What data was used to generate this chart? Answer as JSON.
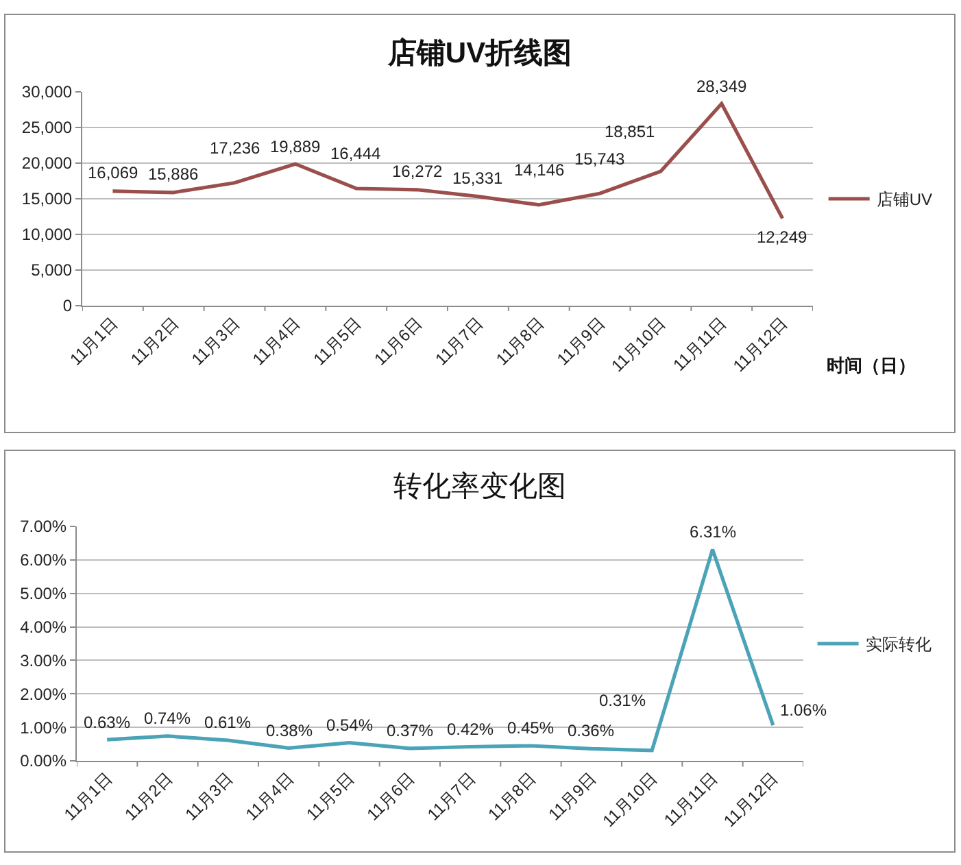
{
  "chart_data": [
    {
      "type": "line",
      "title": "店铺UV折线图",
      "xlabel": "时间（日）",
      "categories": [
        "11月1日",
        "11月2日",
        "11月3日",
        "11月4日",
        "11月5日",
        "11月6日",
        "11月7日",
        "11月8日",
        "11月9日",
        "11月10日",
        "11月11日",
        "11月12日"
      ],
      "series": [
        {
          "name": "店铺UV",
          "color": "#9b4f4c",
          "values": [
            16069,
            15886,
            17236,
            19889,
            16444,
            16272,
            15331,
            14146,
            15743,
            18851,
            28349,
            12249
          ],
          "value_labels": [
            "16,069",
            "15,886",
            "17,236",
            "19,889",
            "16,444",
            "16,272",
            "15,331",
            "14,146",
            "15,743",
            "18,851",
            "28,349",
            "12,249"
          ]
        }
      ],
      "ylim": [
        0,
        30000
      ],
      "yticks": [
        0,
        {
          "value": 5000,
          "label": "5,000"
        },
        {
          "value": 10000,
          "label": "10,000"
        },
        {
          "value": 15000,
          "label": "15,000"
        },
        {
          "value": 20000,
          "label": "20,000"
        },
        {
          "value": 25000,
          "label": "25,000"
        },
        {
          "value": 30000,
          "label": "30,000"
        }
      ],
      "grid": "y",
      "legend": "right",
      "line_style": "solid"
    },
    {
      "type": "line",
      "title": "转化率变化图",
      "categories": [
        "11月1日",
        "11月2日",
        "11月3日",
        "11月4日",
        "11月5日",
        "11月6日",
        "11月7日",
        "11月8日",
        "11月9日",
        "11月10日",
        "11月11日",
        "11月12日"
      ],
      "series": [
        {
          "name": "实际转化",
          "color": "#4ba3b8",
          "values": [
            0.63,
            0.74,
            0.61,
            0.38,
            0.54,
            0.37,
            0.42,
            0.45,
            0.36,
            0.31,
            6.31,
            1.06
          ],
          "value_labels": [
            "0.63%",
            "0.74%",
            "0.61%",
            "0.38%",
            "0.54%",
            "0.37%",
            "0.42%",
            "0.45%",
            "0.36%",
            "0.31%",
            "6.31%",
            "1.06%"
          ]
        }
      ],
      "ylim": [
        0,
        7
      ],
      "yticks": [
        {
          "value": 0,
          "label": "0.00%"
        },
        {
          "value": 1,
          "label": "1.00%"
        },
        {
          "value": 2,
          "label": "2.00%"
        },
        {
          "value": 3,
          "label": "3.00%"
        },
        {
          "value": 4,
          "label": "4.00%"
        },
        {
          "value": 5,
          "label": "5.00%"
        },
        {
          "value": 6,
          "label": "6.00%"
        },
        {
          "value": 7,
          "label": "7.00%"
        }
      ],
      "grid": "y",
      "legend": "right",
      "line_style": "solid"
    }
  ]
}
